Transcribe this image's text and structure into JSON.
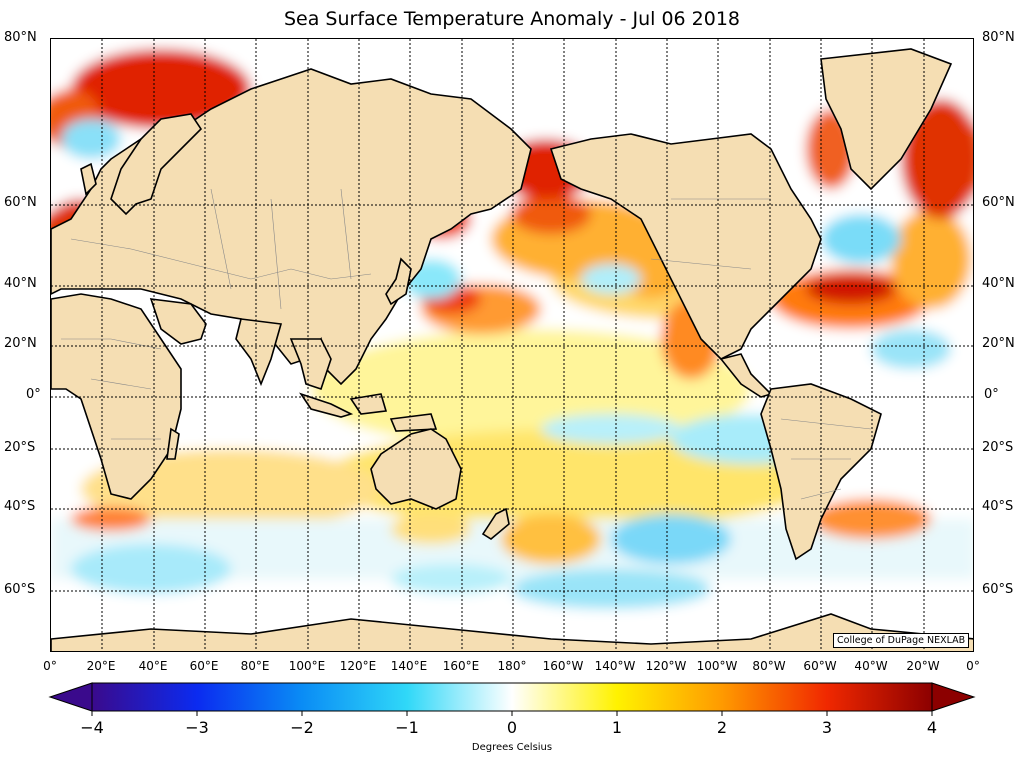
{
  "title": "Sea Surface Temperature Anomaly - Jul 06 2018",
  "credit": "College of DuPage NEXLAB",
  "latitudes": [
    "80°N",
    "60°N",
    "40°N",
    "20°N",
    "0°",
    "20°S",
    "40°S",
    "60°S"
  ],
  "longitudes": [
    "0°",
    "20°E",
    "40°E",
    "60°E",
    "80°E",
    "100°E",
    "120°E",
    "140°E",
    "160°E",
    "180°",
    "160°W",
    "140°W",
    "120°W",
    "100°W",
    "80°W",
    "60°W",
    "40°W",
    "20°W",
    "0°"
  ],
  "colorbar": {
    "ticks": [
      "−4",
      "−3",
      "−2",
      "−1",
      "0",
      "1",
      "2",
      "3",
      "4"
    ],
    "units": "Degrees Celsius",
    "colors": [
      "#3a0a8c",
      "#0b2bf0",
      "#0a8cf5",
      "#30d8f8",
      "#ffffff",
      "#fff200",
      "#ff9a00",
      "#f02800",
      "#8c0000"
    ]
  },
  "colors": {
    "land": "#f5deb3",
    "ocean": "#ffffff"
  }
}
